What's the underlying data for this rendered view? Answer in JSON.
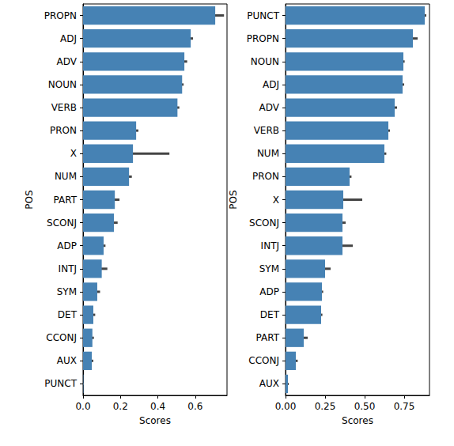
{
  "chart_data": [
    {
      "type": "bar",
      "orientation": "horizontal",
      "color": "#4682b4",
      "xlabel": "Scores",
      "ylabel": "POS",
      "categories": [
        "PROPN",
        "ADJ",
        "ADV",
        "NOUN",
        "VERB",
        "PRON",
        "X",
        "NUM",
        "PART",
        "SCONJ",
        "ADP",
        "INTJ",
        "SYM",
        "DET",
        "CCONJ",
        "AUX",
        "PUNCT"
      ],
      "values": [
        0.707,
        0.576,
        0.542,
        0.53,
        0.505,
        0.284,
        0.267,
        0.246,
        0.17,
        0.165,
        0.11,
        0.1,
        0.076,
        0.055,
        0.05,
        0.047,
        0.002
      ],
      "error": [
        0.047,
        0.012,
        0.015,
        0.008,
        0.01,
        0.012,
        0.195,
        0.015,
        0.025,
        0.02,
        0.01,
        0.03,
        0.015,
        0.01,
        0.008,
        0.008,
        0.002
      ],
      "xlim": [
        0,
        0.77
      ],
      "xticks": [
        {
          "value": 0,
          "label": "0.0"
        },
        {
          "value": 0.2,
          "label": "0.2"
        },
        {
          "value": 0.4,
          "label": "0.4"
        },
        {
          "value": 0.6,
          "label": "0.6"
        }
      ]
    },
    {
      "type": "bar",
      "orientation": "horizontal",
      "color": "#4682b4",
      "xlabel": "Scores",
      "ylabel": "POS",
      "categories": [
        "PUNCT",
        "PROPN",
        "NOUN",
        "ADJ",
        "ADV",
        "VERB",
        "NUM",
        "PRON",
        "X",
        "SCONJ",
        "INTJ",
        "SYM",
        "ADP",
        "DET",
        "PART",
        "CCONJ",
        "AUX"
      ],
      "values": [
        0.88,
        0.805,
        0.745,
        0.74,
        0.69,
        0.65,
        0.625,
        0.405,
        0.365,
        0.36,
        0.36,
        0.25,
        0.23,
        0.225,
        0.115,
        0.065,
        0.015
      ],
      "error": [
        0.01,
        0.03,
        0.008,
        0.01,
        0.015,
        0.01,
        0.012,
        0.012,
        0.12,
        0.02,
        0.065,
        0.035,
        0.008,
        0.008,
        0.025,
        0.012,
        0.005
      ],
      "xlim": [
        0,
        0.91
      ],
      "xticks": [
        {
          "value": 0,
          "label": "0.00"
        },
        {
          "value": 0.25,
          "label": "0.25"
        },
        {
          "value": 0.5,
          "label": "0.50"
        },
        {
          "value": 0.75,
          "label": "0.75"
        }
      ]
    }
  ]
}
